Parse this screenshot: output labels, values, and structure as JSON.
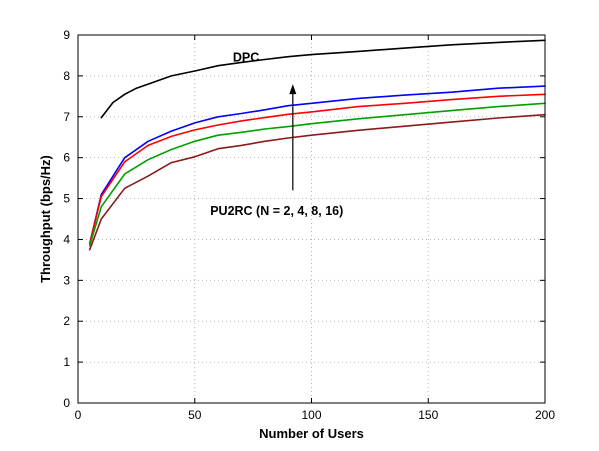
{
  "chart_data": {
    "type": "line",
    "title": "",
    "xlabel": "Number of Users",
    "ylabel": "Throughput (bps/Hz)",
    "xlim": [
      0,
      200
    ],
    "ylim": [
      0,
      9
    ],
    "x_ticks": [
      0,
      50,
      100,
      150,
      200
    ],
    "y_ticks": [
      0,
      1,
      2,
      3,
      4,
      5,
      6,
      7,
      8,
      9
    ],
    "grid": true,
    "legend": "none",
    "series": [
      {
        "name": "DPC",
        "color": "#000000",
        "x": [
          10,
          15,
          20,
          25,
          30,
          40,
          50,
          60,
          70,
          80,
          90,
          100,
          120,
          140,
          160,
          180,
          200
        ],
        "y": [
          6.98,
          7.35,
          7.55,
          7.7,
          7.8,
          8.0,
          8.12,
          8.25,
          8.33,
          8.4,
          8.47,
          8.52,
          8.6,
          8.68,
          8.76,
          8.82,
          8.87
        ]
      },
      {
        "color": "#0000ff",
        "x": [
          5,
          10,
          20,
          30,
          40,
          50,
          60,
          70,
          80,
          90,
          100,
          120,
          140,
          160,
          180,
          200
        ],
        "y": [
          3.9,
          5.1,
          6.0,
          6.4,
          6.65,
          6.85,
          7.0,
          7.08,
          7.17,
          7.27,
          7.33,
          7.45,
          7.53,
          7.6,
          7.7,
          7.75
        ]
      },
      {
        "color": "#ff0000",
        "x": [
          5,
          10,
          20,
          30,
          40,
          50,
          60,
          70,
          80,
          90,
          100,
          120,
          140,
          160,
          180,
          200
        ],
        "y": [
          3.9,
          5.05,
          5.9,
          6.3,
          6.52,
          6.68,
          6.8,
          6.9,
          6.98,
          7.06,
          7.12,
          7.25,
          7.33,
          7.42,
          7.5,
          7.55
        ]
      },
      {
        "color": "#00a000",
        "x": [
          5,
          10,
          20,
          30,
          40,
          50,
          60,
          70,
          80,
          90,
          100,
          120,
          140,
          160,
          180,
          200
        ],
        "y": [
          3.85,
          4.8,
          5.6,
          5.95,
          6.2,
          6.4,
          6.55,
          6.62,
          6.7,
          6.76,
          6.83,
          6.95,
          7.05,
          7.15,
          7.25,
          7.33
        ]
      },
      {
        "color": "#8b1a1a",
        "x": [
          5,
          10,
          20,
          30,
          40,
          50,
          60,
          70,
          80,
          90,
          100,
          120,
          140,
          160,
          180,
          200
        ],
        "y": [
          3.75,
          4.5,
          5.25,
          5.55,
          5.88,
          6.02,
          6.22,
          6.3,
          6.4,
          6.48,
          6.55,
          6.67,
          6.77,
          6.87,
          6.97,
          7.05
        ]
      }
    ],
    "annotations": [
      {
        "text": "DPC",
        "x": 72,
        "y": 8.45
      },
      {
        "text": "PU2RC (N = 2, 4, 8, 16)",
        "x": 50,
        "y": 4.7
      }
    ],
    "arrow": {
      "x": 92,
      "from_y": 5.2,
      "to_y": 7.8
    }
  }
}
